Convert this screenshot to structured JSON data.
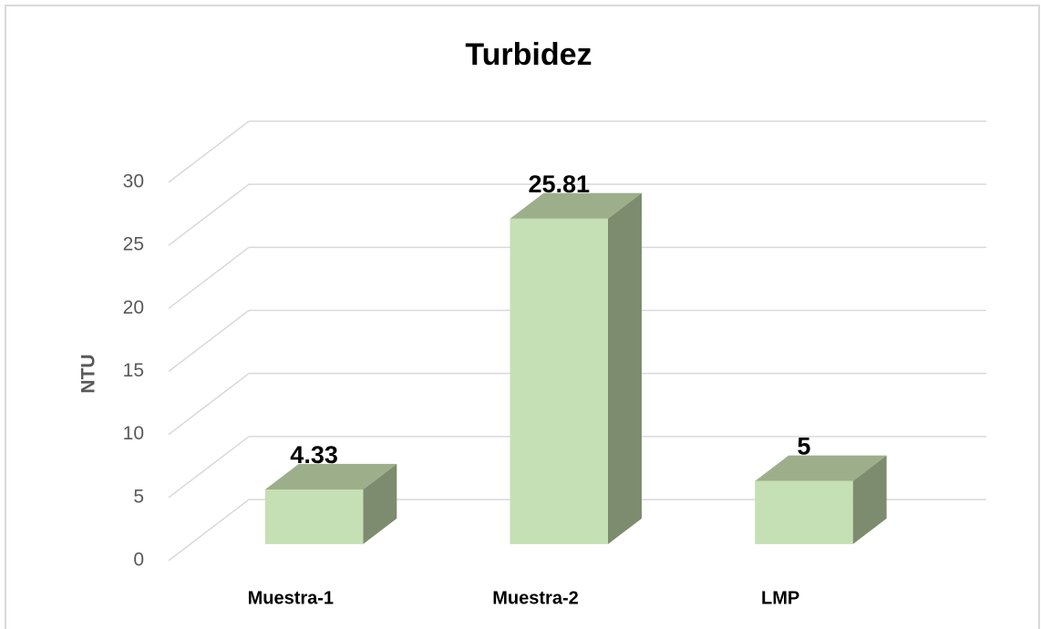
{
  "chart_data": {
    "type": "bar",
    "title": "Turbidez",
    "y_label": "NTU",
    "categories": [
      "Muestra-1",
      "Muestra-2",
      "LMP"
    ],
    "values": [
      4.33,
      25.81,
      5
    ],
    "color": "#c5e0b4",
    "ylim": [
      0,
      30
    ],
    "yticks": [
      0,
      5,
      10,
      15,
      20,
      25,
      30
    ],
    "grid": true
  }
}
